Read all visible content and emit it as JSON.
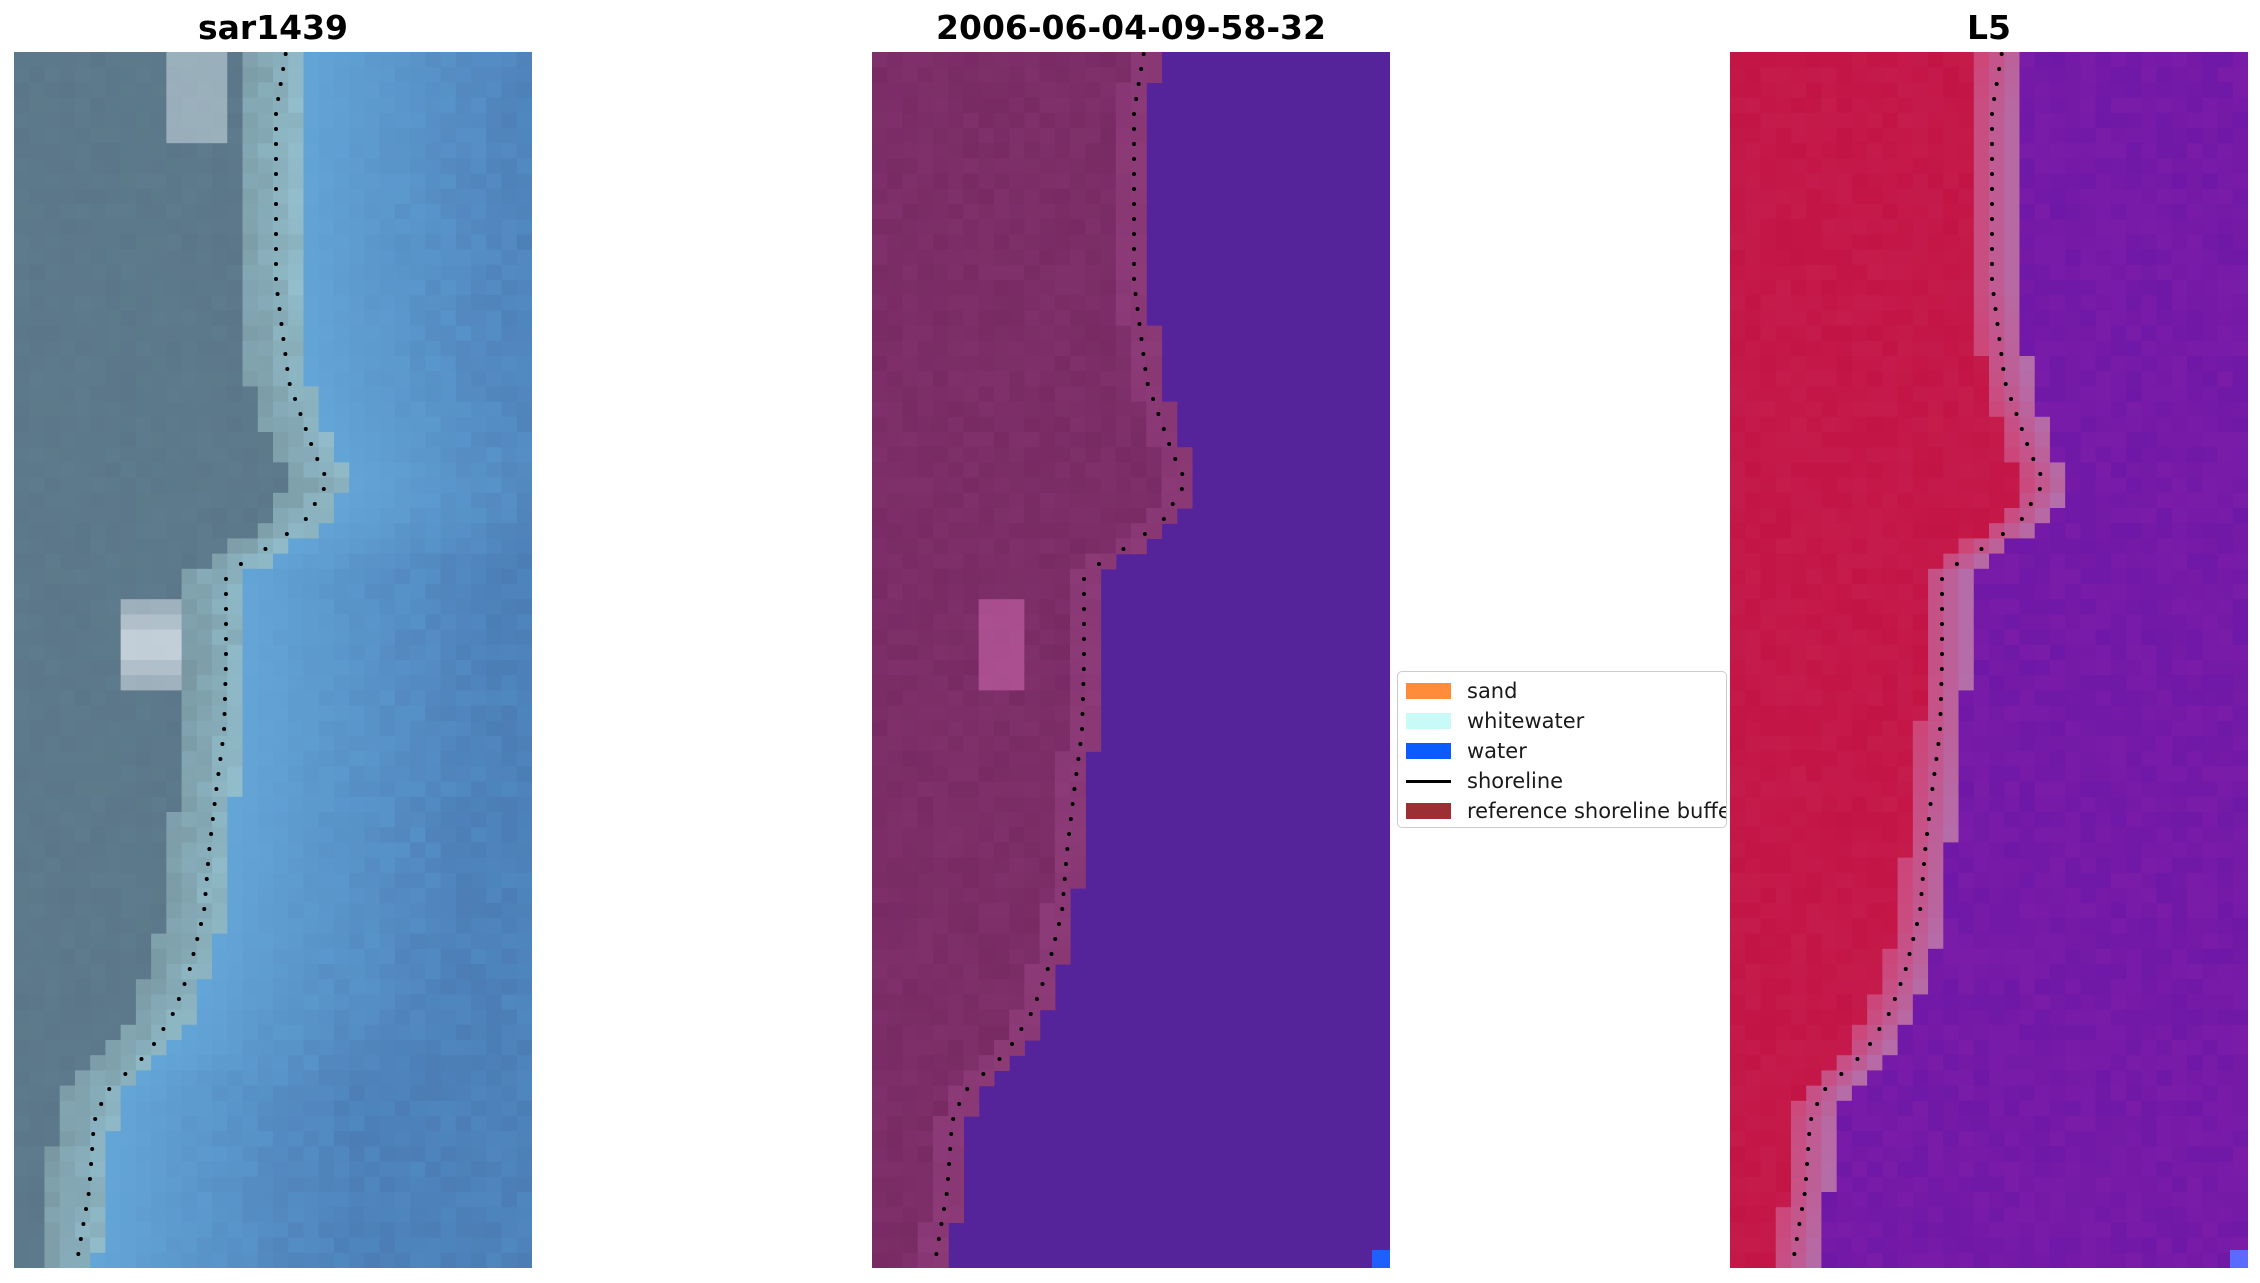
{
  "panels": {
    "left": {
      "title": "sar1439"
    },
    "middle": {
      "title": "2006-06-04-09-58-32"
    },
    "right": {
      "title": "L5"
    }
  },
  "legend": {
    "items": [
      {
        "label": "sand",
        "color": "#ff8c3a",
        "kind": "patch"
      },
      {
        "label": "whitewater",
        "color": "#c8fbf8",
        "kind": "patch"
      },
      {
        "label": "water",
        "color": "#0a5cff",
        "kind": "patch"
      },
      {
        "label": "shoreline",
        "color": "#000000",
        "kind": "line"
      },
      {
        "label": "reference shoreline buffer",
        "color": "#9b2f34",
        "kind": "patch"
      }
    ]
  },
  "colors": {
    "rgb_land": "#5d7b8c",
    "rgb_water": "#4f87bf",
    "class_land": "#782a63",
    "class_water": "#55249a",
    "index_land": "#c31545",
    "index_water": "#7a1ca8"
  }
}
